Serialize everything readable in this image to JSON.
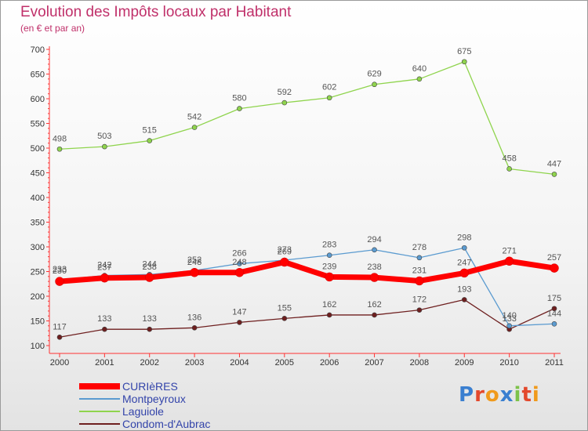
{
  "chart_data": {
    "type": "line",
    "title": "Evolution des Impôts locaux par Habitant",
    "subtitle": "(en € et par an)",
    "xlabel": "",
    "ylabel": "",
    "x": [
      "2000",
      "2001",
      "2002",
      "2003",
      "2004",
      "2005",
      "2006",
      "2007",
      "2008",
      "2009",
      "2010",
      "2011"
    ],
    "ylim": [
      100,
      700
    ],
    "yticks": [
      "100",
      "150",
      "200",
      "250",
      "300",
      "350",
      "400",
      "450",
      "500",
      "550",
      "600",
      "650",
      "700"
    ],
    "grid": false,
    "legend_position": "bottom-left",
    "series": [
      {
        "name": "CURIèRES",
        "color": "#ff0000",
        "values": [
          230,
          237,
          238,
          248,
          248,
          269,
          239,
          238,
          231,
          247,
          271,
          257
        ]
      },
      {
        "name": "Montpeyroux",
        "color": "#5b9bd0",
        "values": [
          233,
          242,
          244,
          252,
          266,
          273,
          283,
          294,
          278,
          298,
          140,
          144
        ]
      },
      {
        "name": "Laguiole",
        "color": "#8fd44d",
        "values": [
          498,
          503,
          515,
          542,
          580,
          592,
          602,
          629,
          640,
          675,
          458,
          447
        ]
      },
      {
        "name": "Condom-d'Aubrac",
        "color": "#6e1f1f",
        "values": [
          117,
          133,
          133,
          136,
          147,
          155,
          162,
          162,
          172,
          193,
          133,
          175
        ]
      }
    ]
  },
  "logo": {
    "letters": [
      "P",
      "r",
      "o",
      "x",
      "i",
      "t",
      "i"
    ]
  }
}
